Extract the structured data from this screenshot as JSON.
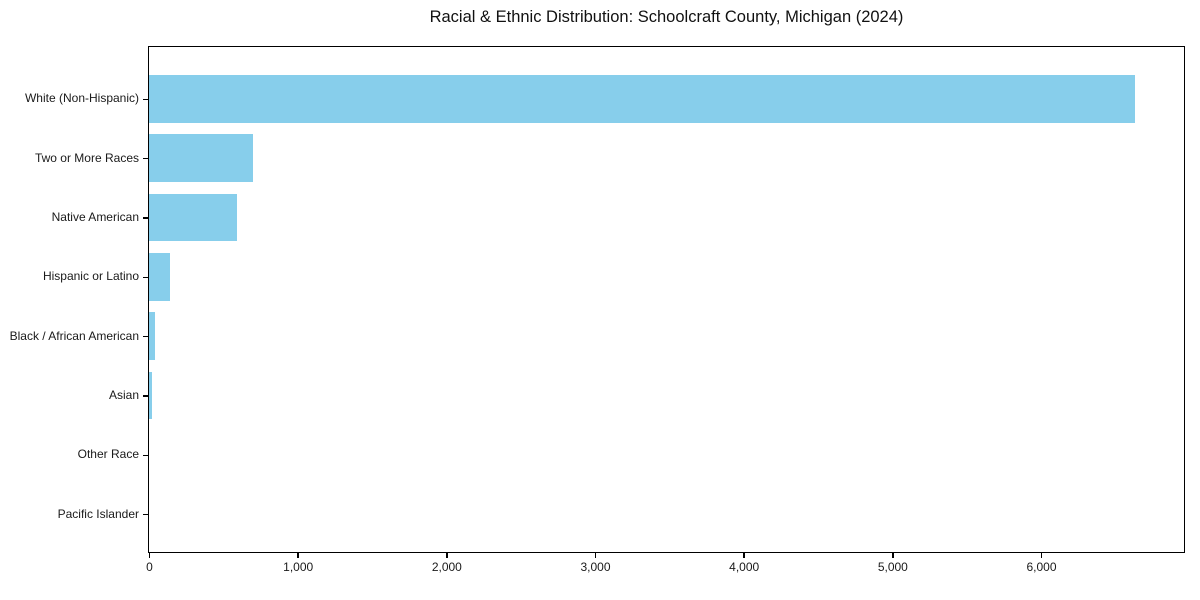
{
  "chart_data": {
    "type": "bar",
    "orientation": "horizontal",
    "title": "Racial & Ethnic Distribution: Schoolcraft County, Michigan (2024)",
    "categories": [
      "White (Non-Hispanic)",
      "Two or More Races",
      "Native American",
      "Hispanic or Latino",
      "Black / African American",
      "Asian",
      "Other Race",
      "Pacific Islander"
    ],
    "values": [
      6635,
      700,
      590,
      140,
      38,
      18,
      0,
      0
    ],
    "xlabel": "",
    "ylabel": "",
    "xlim": [
      0,
      6955
    ],
    "xticks": {
      "values": [
        0,
        1000,
        2000,
        3000,
        4000,
        5000,
        6000
      ],
      "labels": [
        "0",
        "1,000",
        "2,000",
        "3,000",
        "4,000",
        "5,000",
        "6,000"
      ]
    },
    "grid": false,
    "legend_position": "none",
    "bar_color": "#87CEEB",
    "axis_color": "#000000",
    "background_color": "#ffffff"
  }
}
